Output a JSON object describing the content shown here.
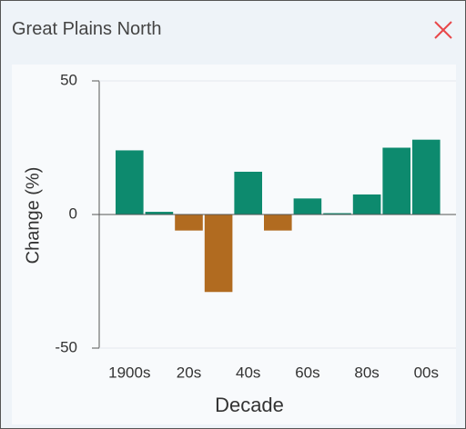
{
  "chart_data": {
    "type": "bar",
    "title": "Great Plains North",
    "x_label": "Decade",
    "y_label": "Change (%)",
    "categories": [
      "1900s",
      null,
      "20s",
      null,
      "40s",
      null,
      "60s",
      null,
      "80s",
      null,
      "00s"
    ],
    "values": [
      24,
      1,
      -6,
      -29,
      16,
      -6,
      6,
      0.5,
      7.5,
      25,
      28
    ],
    "positive_color": "#0d8a6e",
    "negative_color": "#b16b20",
    "ylim": [
      -50,
      50
    ],
    "yticks": [
      -50,
      0,
      50
    ],
    "grid": true
  }
}
